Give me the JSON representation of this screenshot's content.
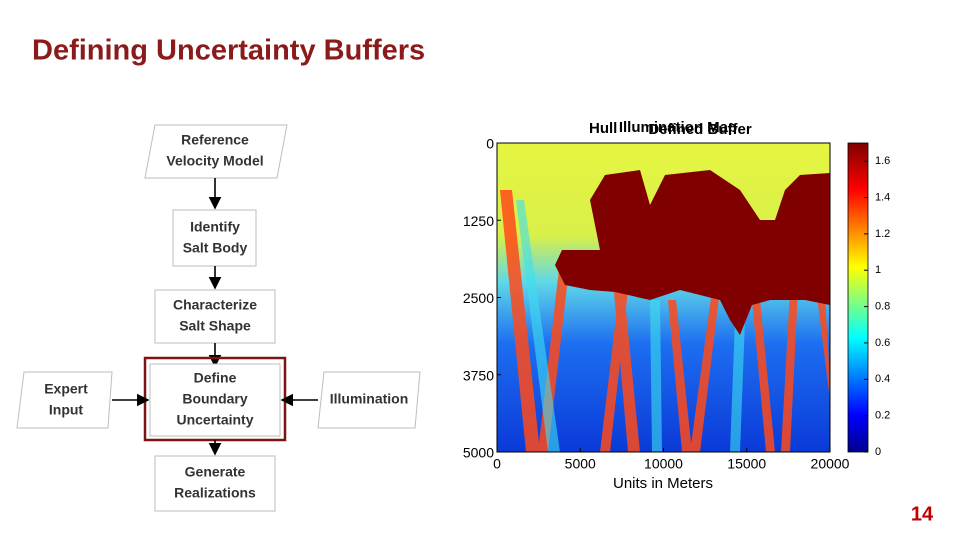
{
  "title": "Defining Uncertainty Buffers",
  "flowchart": {
    "nodes": [
      {
        "lines": [
          "Reference",
          "Velocity Model"
        ]
      },
      {
        "lines": [
          "Identify",
          "Salt Body"
        ]
      },
      {
        "lines": [
          "Characterize",
          "Salt Shape"
        ]
      },
      {
        "lines": [
          "Define",
          "Boundary",
          "Uncertainty"
        ]
      },
      {
        "lines": [
          "Generate",
          "Realizations"
        ]
      },
      {
        "lines": [
          "Expert",
          "Input"
        ]
      },
      {
        "lines": [
          "Illumination"
        ]
      }
    ]
  },
  "figure": {
    "titles": [
      "Hull",
      "Illumination Map",
      "Defined Buffer"
    ],
    "x_label": "Units in Meters",
    "xlim": [
      0,
      20000
    ],
    "xticks": [
      0,
      5000,
      10000,
      15000,
      20000
    ],
    "ylim": [
      0,
      5000
    ],
    "yticks": [
      0,
      1250,
      2500,
      3750,
      5000
    ],
    "colorbar_lim": [
      0,
      1.7
    ],
    "colorbar_ticks": [
      0,
      0.2,
      0.4,
      0.6,
      0.8,
      1,
      1.2,
      1.4,
      1.6
    ]
  },
  "page_number": "14"
}
